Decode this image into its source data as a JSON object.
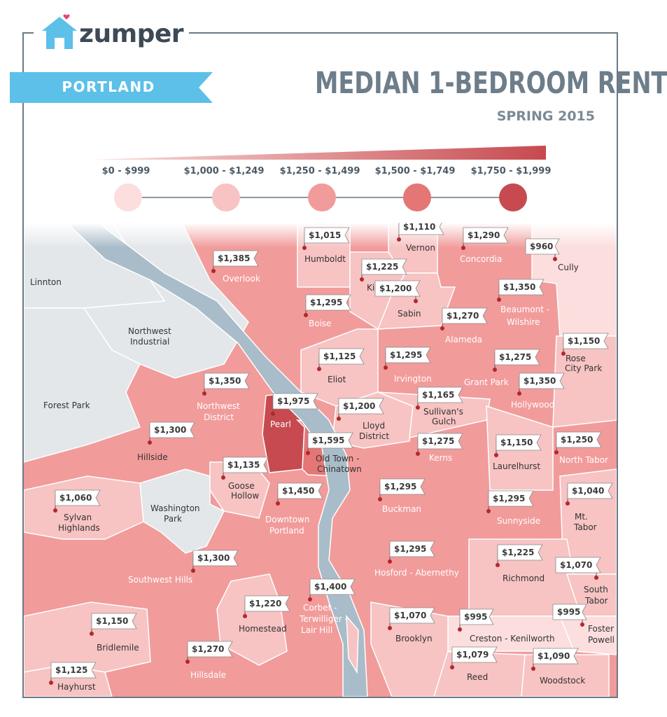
{
  "brand": {
    "name": "zumper",
    "accent": "#5cc0e8",
    "heart": "#e8457a"
  },
  "header": {
    "city": "PORTLAND",
    "title": "MEDIAN 1-BEDROOM RENT",
    "subtitle": "SPRING 2015"
  },
  "legend": {
    "bins": [
      {
        "label": "$0 - $999",
        "color": "#fbdedd"
      },
      {
        "label": "$1,000 - $1,249",
        "color": "#f7c3c3"
      },
      {
        "label": "$1,250 - $1,499",
        "color": "#f29b9b"
      },
      {
        "label": "$1,500 - $1,749",
        "color": "#e47676"
      },
      {
        "label": "$1,750 - $1,999",
        "color": "#c64a4f"
      }
    ]
  },
  "map": {
    "water_color": "#a9bcc9",
    "unrated_color": "#e4e7ea",
    "unrated_areas": [
      "Linnton",
      "Northwest Industrial",
      "Forest Park",
      "Washington Park"
    ],
    "neighborhoods": [
      {
        "name": "Overlook",
        "rent": "$1,385"
      },
      {
        "name": "Humboldt",
        "rent": "$1,015"
      },
      {
        "name": "Vernon",
        "rent": "$1,110"
      },
      {
        "name": "Concordia",
        "rent": "$1,290"
      },
      {
        "name": "Cully",
        "rent": "$960"
      },
      {
        "name": "King",
        "rent": "$1,225"
      },
      {
        "name": "Boise",
        "rent": "$1,295"
      },
      {
        "name": "Sabin",
        "rent": "$1,200"
      },
      {
        "name": "Beaumont - Wilshire",
        "rent": "$1,350"
      },
      {
        "name": "Alameda",
        "rent": "$1,270"
      },
      {
        "name": "Rose City Park",
        "rent": "$1,150"
      },
      {
        "name": "Eliot",
        "rent": "$1,125"
      },
      {
        "name": "Irvington",
        "rent": "$1,295"
      },
      {
        "name": "Grant Park",
        "rent": "$1,275"
      },
      {
        "name": "Northwest District",
        "rent": "$1,350"
      },
      {
        "name": "Hollywood",
        "rent": "$1,350"
      },
      {
        "name": "Pearl",
        "rent": "$1,975"
      },
      {
        "name": "Sullivan's Gulch",
        "rent": "$1,165"
      },
      {
        "name": "Lloyd District",
        "rent": "$1,200"
      },
      {
        "name": "Hillside",
        "rent": "$1,300"
      },
      {
        "name": "Old Town - Chinatown",
        "rent": "$1,595"
      },
      {
        "name": "Kerns",
        "rent": "$1,275"
      },
      {
        "name": "Laurelhurst",
        "rent": "$1,150"
      },
      {
        "name": "North Tabor",
        "rent": "$1,250"
      },
      {
        "name": "Goose Hollow",
        "rent": "$1,135"
      },
      {
        "name": "Sylvan Highlands",
        "rent": "$1,060"
      },
      {
        "name": "Downtown Portland",
        "rent": "$1,450"
      },
      {
        "name": "Buckman",
        "rent": "$1,295"
      },
      {
        "name": "Sunnyside",
        "rent": "$1,295"
      },
      {
        "name": "Mt. Tabor",
        "rent": "$1,040"
      },
      {
        "name": "Southwest Hills",
        "rent": "$1,300"
      },
      {
        "name": "Hosford - Abernethy",
        "rent": "$1,295"
      },
      {
        "name": "Richmond",
        "rent": "$1,225"
      },
      {
        "name": "South Tabor",
        "rent": "$1,070"
      },
      {
        "name": "Corbet - Terwilliger - Lair Hill",
        "rent": "$1,400"
      },
      {
        "name": "Homestead",
        "rent": "$1,220"
      },
      {
        "name": "Bridlemile",
        "rent": "$1,150"
      },
      {
        "name": "Brooklyn",
        "rent": "$1,070"
      },
      {
        "name": "Creston - Kenilworth",
        "rent": "$995"
      },
      {
        "name": "Foster - Powell",
        "rent": "$995"
      },
      {
        "name": "Hillsdale",
        "rent": "$1,270"
      },
      {
        "name": "Reed",
        "rent": "$1,079"
      },
      {
        "name": "Woodstock",
        "rent": "$1,090"
      },
      {
        "name": "Hayhurst",
        "rent": "$1,125"
      }
    ]
  }
}
